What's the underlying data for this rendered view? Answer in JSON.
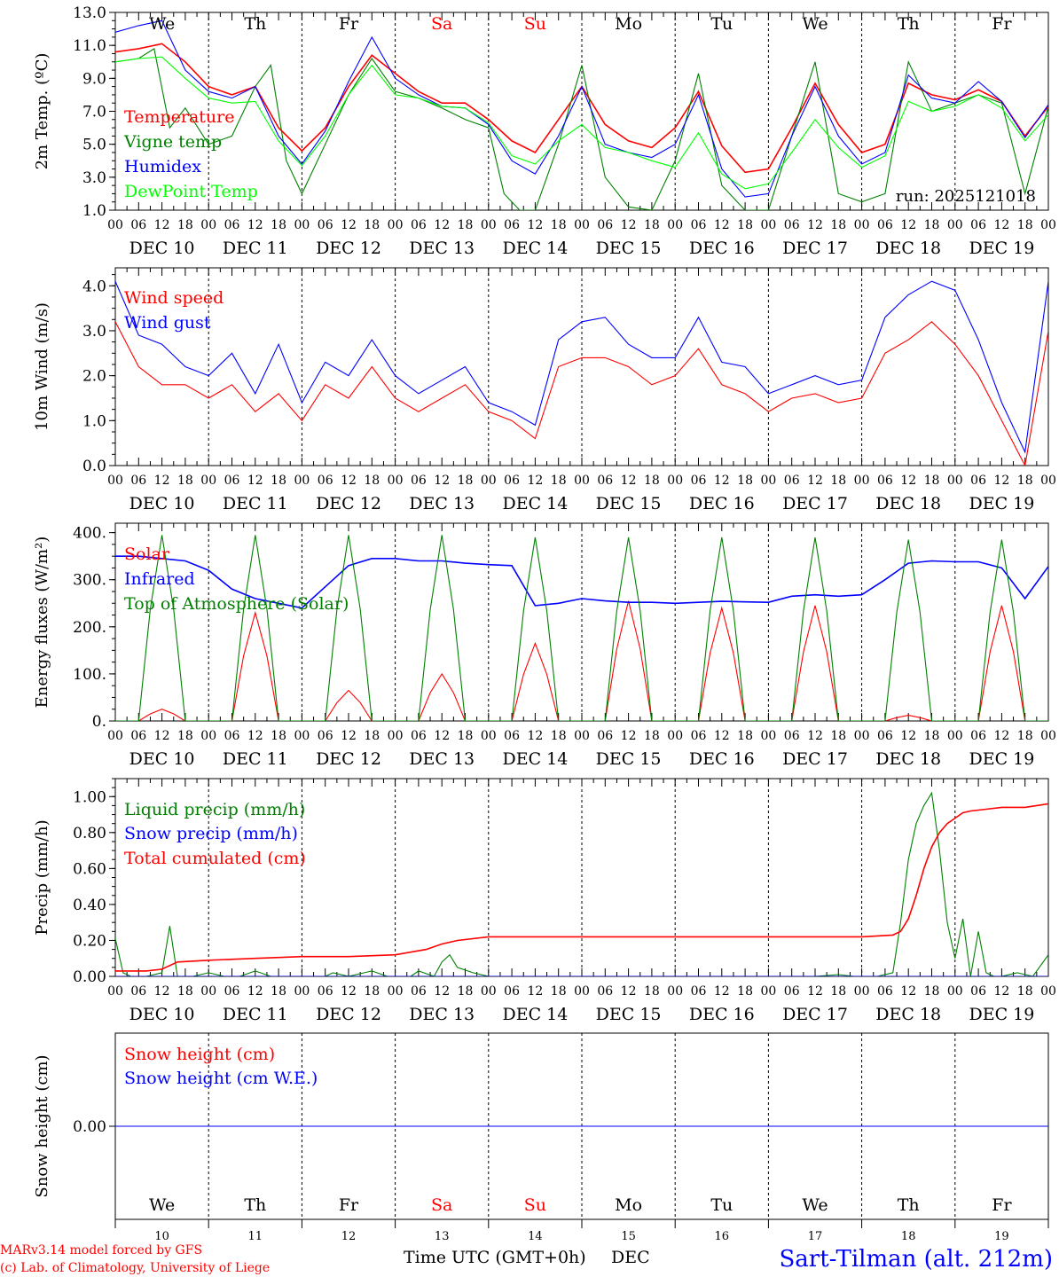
{
  "footer": {
    "model_line": "MARv3.14 model forced by GFS",
    "credit_line": "(c) Lab. of Climatology, University of Liege",
    "xlabel": "Time UTC (GMT+0h)",
    "month": "DEC",
    "station": "Sart-Tilman (alt. 212m)"
  },
  "day_labels": [
    "We",
    "Th",
    "Fr",
    "Sa",
    "Su",
    "Mo",
    "Tu",
    "We",
    "Th",
    "Fr"
  ],
  "weekend_color": "#ff0000",
  "day_numbers": [
    "10",
    "11",
    "12",
    "13",
    "14",
    "15",
    "16",
    "17",
    "18",
    "19"
  ],
  "date_labels": [
    "DEC 10",
    "DEC 11",
    "DEC 12",
    "DEC 13",
    "DEC 14",
    "DEC 15",
    "DEC 16",
    "DEC 17",
    "DEC 18",
    "DEC 19"
  ],
  "hour_labels": [
    "00",
    "06",
    "12",
    "18"
  ],
  "colors": {
    "red": "#ff0000",
    "green": "#008000",
    "blue": "#0000ff",
    "lime": "#00ff00"
  },
  "chart_data": [
    {
      "type": "line",
      "ylabel": "2m Temp. (ºC)",
      "ylim": [
        1.0,
        13.0
      ],
      "yticks": [
        "1.0",
        "3.0",
        "5.0",
        "7.0",
        "9.0",
        "11.0",
        "13.0"
      ],
      "x_unit": "hours from 10 Dec 00 UTC",
      "annotation": "run: 2025121018",
      "series": [
        {
          "name": "Temperature",
          "color": "#ff0000",
          "x": [
            0,
            6,
            12,
            18,
            24,
            30,
            36,
            42,
            48,
            54,
            60,
            66,
            72,
            78,
            84,
            90,
            96,
            102,
            108,
            114,
            120,
            126,
            132,
            138,
            144,
            150,
            156,
            162,
            168,
            174,
            180,
            186,
            192,
            198,
            204,
            210,
            216,
            222,
            228,
            234,
            240
          ],
          "values": [
            10.6,
            10.8,
            11.1,
            10.0,
            8.5,
            8.0,
            8.5,
            6.0,
            4.6,
            6.0,
            8.5,
            10.4,
            9.3,
            8.2,
            7.5,
            7.5,
            6.5,
            5.2,
            4.5,
            6.5,
            8.5,
            6.2,
            5.2,
            4.8,
            6.0,
            8.2,
            4.9,
            3.3,
            3.5,
            6.0,
            8.7,
            6.2,
            4.5,
            5.0,
            8.7,
            8.0,
            7.7,
            8.3,
            7.6,
            5.5,
            7.3
          ]
        },
        {
          "name": "Vigne temp",
          "color": "#008000",
          "x": [
            0,
            6,
            10,
            14,
            18,
            24,
            30,
            36,
            40,
            44,
            48,
            54,
            60,
            66,
            72,
            78,
            84,
            90,
            96,
            100,
            104,
            108,
            114,
            120,
            126,
            132,
            138,
            144,
            150,
            156,
            162,
            168,
            174,
            180,
            186,
            192,
            198,
            204,
            210,
            216,
            222,
            228,
            234,
            240
          ],
          "values": [
            10.0,
            10.2,
            10.8,
            6.0,
            7.2,
            5.0,
            5.5,
            8.5,
            9.8,
            4.0,
            2.0,
            5.0,
            8.0,
            10.2,
            8.2,
            7.8,
            7.2,
            6.5,
            6.0,
            2.0,
            1.0,
            1.0,
            5.0,
            9.8,
            3.0,
            1.2,
            1.0,
            4.0,
            9.3,
            2.5,
            1.0,
            1.0,
            5.5,
            10.0,
            2.0,
            1.5,
            2.0,
            10.0,
            7.0,
            7.5,
            8.0,
            7.5,
            2.0,
            7.3
          ]
        },
        {
          "name": "Humidex",
          "color": "#0000ff",
          "x": [
            0,
            6,
            12,
            18,
            24,
            30,
            36,
            42,
            48,
            54,
            60,
            66,
            72,
            78,
            84,
            90,
            96,
            102,
            108,
            114,
            120,
            126,
            132,
            138,
            144,
            150,
            156,
            162,
            168,
            174,
            180,
            186,
            192,
            198,
            204,
            210,
            216,
            222,
            228,
            234,
            240
          ],
          "values": [
            11.8,
            12.2,
            12.5,
            9.5,
            8.2,
            7.8,
            8.5,
            5.5,
            3.8,
            5.8,
            8.8,
            11.5,
            9.0,
            8.0,
            7.3,
            7.2,
            6.2,
            4.0,
            3.2,
            5.5,
            8.5,
            5.0,
            4.5,
            4.2,
            5.0,
            8.0,
            3.5,
            1.8,
            2.0,
            5.5,
            8.5,
            5.5,
            3.8,
            4.5,
            9.2,
            7.8,
            7.5,
            8.8,
            7.6,
            5.4,
            7.4
          ]
        },
        {
          "name": "DewPoint Temp",
          "color": "#00ff00",
          "x": [
            0,
            6,
            12,
            18,
            24,
            30,
            36,
            42,
            48,
            54,
            60,
            66,
            72,
            78,
            84,
            90,
            96,
            102,
            108,
            114,
            120,
            126,
            132,
            138,
            144,
            150,
            156,
            162,
            168,
            174,
            180,
            186,
            192,
            198,
            204,
            210,
            216,
            222,
            228,
            234,
            240
          ],
          "values": [
            10.0,
            10.2,
            10.3,
            9.0,
            7.8,
            7.5,
            7.6,
            5.2,
            3.7,
            5.5,
            8.0,
            9.8,
            8.0,
            7.8,
            7.3,
            7.2,
            6.3,
            4.3,
            3.8,
            5.2,
            6.2,
            4.8,
            4.5,
            4.0,
            3.6,
            5.7,
            3.2,
            2.3,
            2.6,
            4.5,
            6.5,
            4.8,
            3.6,
            4.3,
            7.6,
            7.0,
            7.3,
            8.0,
            7.2,
            5.2,
            6.8
          ]
        }
      ]
    },
    {
      "type": "line",
      "ylabel": "10m Wind (m/s)",
      "ylim": [
        0.0,
        4.4
      ],
      "yticks": [
        "0.0",
        "1.0",
        "2.0",
        "3.0",
        "4.0"
      ],
      "series": [
        {
          "name": "Wind speed",
          "color": "#ff0000",
          "x": [
            0,
            6,
            12,
            18,
            24,
            30,
            36,
            42,
            48,
            54,
            60,
            66,
            72,
            78,
            84,
            90,
            96,
            102,
            108,
            114,
            120,
            126,
            132,
            138,
            144,
            150,
            156,
            162,
            168,
            174,
            180,
            186,
            192,
            198,
            204,
            210,
            216,
            222,
            228,
            234,
            240
          ],
          "values": [
            3.2,
            2.2,
            1.8,
            1.8,
            1.5,
            1.8,
            1.2,
            1.6,
            1.0,
            1.8,
            1.5,
            2.2,
            1.5,
            1.2,
            1.5,
            1.8,
            1.2,
            1.0,
            0.6,
            2.2,
            2.4,
            2.4,
            2.2,
            1.8,
            2.0,
            2.6,
            1.8,
            1.6,
            1.2,
            1.5,
            1.6,
            1.4,
            1.5,
            2.5,
            2.8,
            3.2,
            2.7,
            2.0,
            1.0,
            0.0,
            3.0
          ]
        },
        {
          "name": "Wind gust",
          "color": "#0000ff",
          "x": [
            0,
            6,
            12,
            18,
            24,
            30,
            36,
            42,
            48,
            54,
            60,
            66,
            72,
            78,
            84,
            90,
            96,
            102,
            108,
            114,
            120,
            126,
            132,
            138,
            144,
            150,
            156,
            162,
            168,
            174,
            180,
            186,
            192,
            198,
            204,
            210,
            216,
            222,
            228,
            234,
            240
          ],
          "values": [
            4.1,
            2.9,
            2.7,
            2.2,
            2.0,
            2.5,
            1.6,
            2.7,
            1.4,
            2.3,
            2.0,
            2.8,
            2.0,
            1.6,
            1.9,
            2.2,
            1.4,
            1.2,
            0.9,
            2.8,
            3.2,
            3.3,
            2.7,
            2.4,
            2.4,
            3.3,
            2.3,
            2.2,
            1.6,
            1.8,
            2.0,
            1.8,
            1.9,
            3.3,
            3.8,
            4.1,
            3.9,
            2.8,
            1.4,
            0.3,
            4.1
          ]
        }
      ]
    },
    {
      "type": "line",
      "ylabel": "Energy fluxes (W/m²)",
      "ylim": [
        0,
        420
      ],
      "yticks": [
        "0.",
        "100.",
        "200.",
        "300.",
        "400."
      ],
      "series": [
        {
          "name": "Solar",
          "color": "#ff0000",
          "peak_x": [
            12,
            36,
            60,
            84,
            108,
            132,
            156,
            180,
            204,
            228
          ],
          "peak_values": [
            25,
            230,
            65,
            100,
            165,
            255,
            240,
            245,
            12,
            245
          ]
        },
        {
          "name": "Infrared",
          "color": "#0000ff",
          "x": [
            0,
            6,
            12,
            18,
            24,
            30,
            36,
            42,
            48,
            54,
            60,
            66,
            72,
            78,
            84,
            90,
            96,
            102,
            108,
            114,
            120,
            126,
            132,
            138,
            144,
            150,
            156,
            162,
            168,
            174,
            180,
            186,
            192,
            198,
            204,
            210,
            216,
            222,
            228,
            234,
            240
          ],
          "values": [
            350,
            350,
            345,
            340,
            320,
            280,
            260,
            250,
            240,
            285,
            330,
            345,
            345,
            340,
            340,
            335,
            332,
            330,
            245,
            250,
            260,
            255,
            252,
            252,
            250,
            252,
            254,
            253,
            252,
            265,
            268,
            265,
            268,
            300,
            335,
            340,
            338,
            338,
            325,
            260,
            328
          ]
        },
        {
          "name": "Top of Atmosphere (Solar)",
          "color": "#008000",
          "peak_x": [
            12,
            36,
            60,
            84,
            108,
            132,
            156,
            180,
            204,
            228
          ],
          "peak_values": [
            395,
            395,
            395,
            395,
            390,
            390,
            390,
            390,
            385,
            385
          ]
        }
      ]
    },
    {
      "type": "line",
      "ylabel": "Precip (mm/h)",
      "ylim": [
        0.0,
        1.1
      ],
      "yticks": [
        "0.00",
        "0.20",
        "0.40",
        "0.60",
        "0.80",
        "1.00"
      ],
      "series": [
        {
          "name": "Liquid precip (mm/h)",
          "color": "#008000",
          "x": [
            0,
            2,
            4,
            8,
            12,
            14,
            16,
            20,
            24,
            28,
            32,
            36,
            40,
            44,
            48,
            54,
            56,
            60,
            66,
            70,
            72,
            76,
            78,
            82,
            84,
            86,
            88,
            92,
            96,
            100,
            108,
            120,
            132,
            144,
            156,
            168,
            180,
            186,
            190,
            192,
            196,
            200,
            202,
            204,
            206,
            208,
            210,
            212,
            214,
            216,
            218,
            220,
            222,
            224,
            226,
            228,
            232,
            236,
            240
          ],
          "values": [
            0.21,
            0.02,
            0.0,
            0.0,
            0.02,
            0.28,
            0.0,
            0.0,
            0.02,
            0.0,
            0.0,
            0.03,
            0.0,
            0.0,
            0.0,
            0.0,
            0.02,
            0.0,
            0.03,
            0.0,
            0.0,
            0.0,
            0.03,
            0.0,
            0.08,
            0.12,
            0.05,
            0.02,
            0.0,
            0.0,
            0.0,
            0.0,
            0.0,
            0.0,
            0.0,
            0.0,
            0.0,
            0.01,
            0.0,
            0.0,
            0.0,
            0.02,
            0.3,
            0.65,
            0.85,
            0.95,
            1.02,
            0.7,
            0.3,
            0.1,
            0.32,
            0.0,
            0.25,
            0.02,
            0.0,
            0.0,
            0.02,
            0.0,
            0.12
          ]
        },
        {
          "name": "Snow precip (mm/h)",
          "color": "#0000ff",
          "x": [
            0,
            240
          ],
          "values": [
            0,
            0
          ]
        },
        {
          "name": "Total cumulated (cm)",
          "color": "#ff0000",
          "x": [
            0,
            8,
            12,
            16,
            24,
            36,
            48,
            60,
            72,
            80,
            84,
            88,
            96,
            108,
            120,
            144,
            168,
            192,
            200,
            202,
            204,
            206,
            208,
            210,
            212,
            214,
            216,
            218,
            220,
            224,
            228,
            234,
            240
          ],
          "values": [
            0.03,
            0.03,
            0.04,
            0.08,
            0.09,
            0.1,
            0.11,
            0.11,
            0.12,
            0.15,
            0.18,
            0.2,
            0.22,
            0.22,
            0.22,
            0.22,
            0.22,
            0.22,
            0.23,
            0.25,
            0.32,
            0.45,
            0.6,
            0.72,
            0.8,
            0.85,
            0.88,
            0.91,
            0.92,
            0.93,
            0.94,
            0.94,
            0.96
          ]
        }
      ]
    },
    {
      "type": "line",
      "ylabel": "Snow height (cm)",
      "yticks": [
        "0.00"
      ],
      "series": [
        {
          "name": "Snow height (cm)",
          "color": "#ff0000",
          "x": [
            0,
            240
          ],
          "values": [
            0,
            0
          ]
        },
        {
          "name": "Snow height (cm W.E.)",
          "color": "#0000ff",
          "x": [
            0,
            240
          ],
          "values": [
            0,
            0
          ]
        }
      ]
    }
  ]
}
